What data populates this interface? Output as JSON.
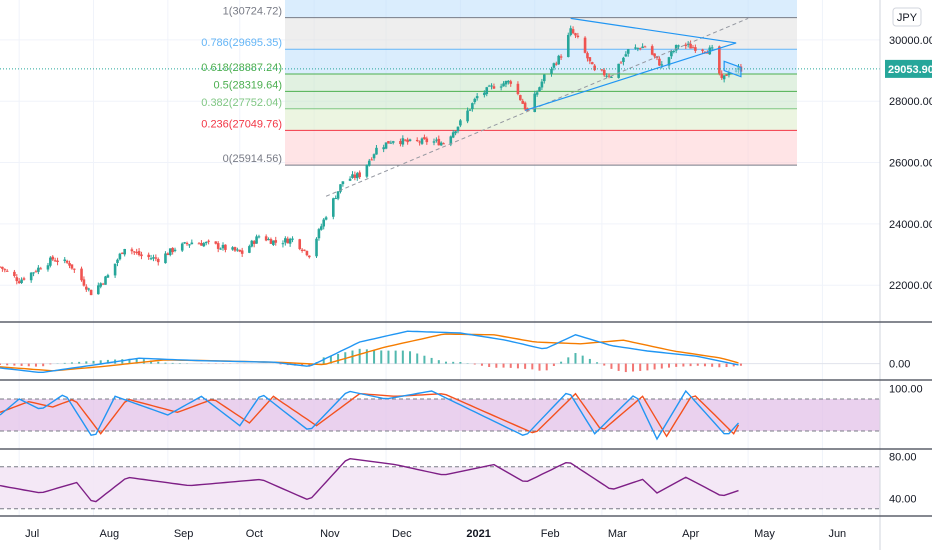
{
  "currency": "JPY",
  "last_price": "29053.90",
  "colors": {
    "up": "#26a69a",
    "down": "#ef5350",
    "macd": "#2196f3",
    "signal": "#f57c00",
    "stoch_k": "#2196f3",
    "stoch_d": "#f4511e",
    "rsi": "#7e1f86",
    "trend": "#2196f3",
    "osc_band": "#e1bee7",
    "rsi_band": "#f3e5f5",
    "last_price_bg": "#26a69a"
  },
  "chart_data": [
    {
      "type": "candlestick",
      "title": "",
      "x_ticks": [
        "Jul",
        "Aug",
        "Sep",
        "Oct",
        "Nov",
        "Dec",
        "2021",
        "Feb",
        "Mar",
        "Apr",
        "May",
        "Jun"
      ],
      "x_range": [
        "2020-06-23",
        "2021-06-25"
      ],
      "y_ticks": [
        "30000.00",
        "28000.00",
        "26000.00",
        "24000.00",
        "22000.00"
      ],
      "y_range": [
        20800,
        31300
      ],
      "fibonacci": [
        {
          "level": "1",
          "price": "30724.72",
          "label": "1(30724.72)",
          "color": "#787b86"
        },
        {
          "level": "0.786",
          "price": "29695.35",
          "label": "0.786(29695.35)",
          "color": "#64b5f6"
        },
        {
          "level": "0.618",
          "price": "28887.24",
          "label": "0.618(28887.24)",
          "color": "#4caf50"
        },
        {
          "level": "0.5",
          "price": "28319.64",
          "label": "0.5(28319.64)",
          "color": "#4caf50"
        },
        {
          "level": "0.382",
          "price": "27752.04",
          "label": "0.382(27752.04)",
          "color": "#81c784"
        },
        {
          "level": "0.236",
          "price": "27049.76",
          "label": "0.236(27049.76)",
          "color": "#f23645"
        },
        {
          "level": "0",
          "price": "25914.56",
          "label": "0(25914.56)",
          "color": "#787b86"
        }
      ],
      "price_path": [
        [
          "2020-06-23",
          22600
        ],
        [
          "2020-07-01",
          22150
        ],
        [
          "2020-07-08",
          22500
        ],
        [
          "2020-07-15",
          22850
        ],
        [
          "2020-07-22",
          22700
        ],
        [
          "2020-07-31",
          21750
        ],
        [
          "2020-08-07",
          22300
        ],
        [
          "2020-08-14",
          23250
        ],
        [
          "2020-08-21",
          22950
        ],
        [
          "2020-08-28",
          22850
        ],
        [
          "2020-09-04",
          23200
        ],
        [
          "2020-09-11",
          23400
        ],
        [
          "2020-09-18",
          23350
        ],
        [
          "2020-09-25",
          23200
        ],
        [
          "2020-10-02",
          23050
        ],
        [
          "2020-10-09",
          23600
        ],
        [
          "2020-10-16",
          23400
        ],
        [
          "2020-10-23",
          23500
        ],
        [
          "2020-10-30",
          23000
        ],
        [
          "2020-11-06",
          24300
        ],
        [
          "2020-11-13",
          25400
        ],
        [
          "2020-11-20",
          25600
        ],
        [
          "2020-11-27",
          26450
        ],
        [
          "2020-12-04",
          26750
        ],
        [
          "2020-12-11",
          26650
        ],
        [
          "2020-12-18",
          26700
        ],
        [
          "2020-12-25",
          26650
        ],
        [
          "2021-01-01",
          27300
        ],
        [
          "2021-01-08",
          28150
        ],
        [
          "2021-01-15",
          28500
        ],
        [
          "2021-01-22",
          28650
        ],
        [
          "2021-01-29",
          27650
        ],
        [
          "2021-02-05",
          28800
        ],
        [
          "2021-02-12",
          29500
        ],
        [
          "2021-02-16",
          30300
        ],
        [
          "2021-02-19",
          30000
        ],
        [
          "2021-02-26",
          28950
        ],
        [
          "2021-03-05",
          28850
        ],
        [
          "2021-03-12",
          29650
        ],
        [
          "2021-03-19",
          29800
        ],
        [
          "2021-03-26",
          29150
        ],
        [
          "2021-04-02",
          29850
        ],
        [
          "2021-04-09",
          29750
        ],
        [
          "2021-04-16",
          29650
        ],
        [
          "2021-04-20",
          28650
        ],
        [
          "2021-04-23",
          29000
        ],
        [
          "2021-04-28",
          29053.9
        ]
      ],
      "triangle_upper": [
        [
          "2021-02-16",
          30700
        ],
        [
          "2021-04-26",
          29900
        ]
      ],
      "triangle_lower": [
        [
          "2021-01-28",
          27700
        ],
        [
          "2021-04-26",
          29900
        ]
      ],
      "dashed_trend": [
        [
          "2020-11-06",
          24900
        ],
        [
          "2021-05-01",
          30700
        ]
      ],
      "flag_channel": [
        [
          "2021-04-21",
          29150
        ],
        [
          "2021-04-28",
          28950
        ]
      ]
    },
    {
      "type": "macd",
      "y_ticks": [
        "0.00"
      ],
      "series": [
        {
          "key": "macd",
          "values": [
            [
              -120,
              "2020-06-23"
            ],
            [
              -250,
              "2020-07-10"
            ],
            [
              -50,
              "2020-07-31"
            ],
            [
              150,
              "2020-08-20"
            ],
            [
              80,
              "2020-09-15"
            ],
            [
              40,
              "2020-10-15"
            ],
            [
              -80,
              "2020-10-30"
            ],
            [
              600,
              "2020-11-20"
            ],
            [
              900,
              "2020-12-10"
            ],
            [
              850,
              "2021-01-01"
            ],
            [
              650,
              "2021-01-20"
            ],
            [
              400,
              "2021-02-05"
            ],
            [
              800,
              "2021-02-18"
            ],
            [
              500,
              "2021-03-05"
            ],
            [
              350,
              "2021-03-20"
            ],
            [
              200,
              "2021-04-10"
            ],
            [
              -50,
              "2021-04-28"
            ]
          ]
        },
        {
          "key": "signal",
          "values": [
            [
              -90,
              "2020-06-23"
            ],
            [
              -200,
              "2020-07-15"
            ],
            [
              -80,
              "2020-08-05"
            ],
            [
              100,
              "2020-08-30"
            ],
            [
              80,
              "2020-09-20"
            ],
            [
              30,
              "2020-10-20"
            ],
            [
              -30,
              "2020-11-05"
            ],
            [
              450,
              "2020-11-30"
            ],
            [
              820,
              "2020-12-25"
            ],
            [
              800,
              "2021-01-15"
            ],
            [
              600,
              "2021-02-01"
            ],
            [
              550,
              "2021-02-20"
            ],
            [
              650,
              "2021-03-10"
            ],
            [
              350,
              "2021-03-31"
            ],
            [
              150,
              "2021-04-20"
            ],
            [
              0,
              "2021-04-28"
            ]
          ]
        }
      ]
    },
    {
      "type": "stochastic",
      "y_ticks": [
        "100.00"
      ],
      "levels": [
        80,
        20
      ],
      "series": [
        {
          "key": "k",
          "values": [
            [
              50,
              "2020-06-23"
            ],
            [
              80,
              "2020-07-01"
            ],
            [
              60,
              "2020-07-10"
            ],
            [
              90,
              "2020-07-20"
            ],
            [
              5,
              "2020-08-01"
            ],
            [
              85,
              "2020-08-10"
            ],
            [
              50,
              "2020-09-01"
            ],
            [
              85,
              "2020-09-15"
            ],
            [
              30,
              "2020-10-01"
            ],
            [
              90,
              "2020-10-10"
            ],
            [
              20,
              "2020-10-30"
            ],
            [
              95,
              "2020-11-15"
            ],
            [
              80,
              "2020-12-01"
            ],
            [
              95,
              "2020-12-20"
            ],
            [
              10,
              "2021-01-28"
            ],
            [
              95,
              "2021-02-15"
            ],
            [
              15,
              "2021-02-26"
            ],
            [
              90,
              "2021-03-15"
            ],
            [
              5,
              "2021-03-24"
            ],
            [
              95,
              "2021-04-05"
            ],
            [
              10,
              "2021-04-22"
            ],
            [
              40,
              "2021-04-28"
            ]
          ]
        },
        {
          "key": "d",
          "values": [
            [
              55,
              "2020-06-23"
            ],
            [
              75,
              "2020-07-05"
            ],
            [
              65,
              "2020-07-15"
            ],
            [
              80,
              "2020-07-24"
            ],
            [
              15,
              "2020-08-04"
            ],
            [
              80,
              "2020-08-15"
            ],
            [
              55,
              "2020-09-05"
            ],
            [
              80,
              "2020-09-20"
            ],
            [
              35,
              "2020-10-05"
            ],
            [
              85,
              "2020-10-15"
            ],
            [
              30,
              "2020-11-02"
            ],
            [
              90,
              "2020-11-20"
            ],
            [
              85,
              "2020-12-05"
            ],
            [
              90,
              "2020-12-25"
            ],
            [
              15,
              "2021-02-01"
            ],
            [
              90,
              "2021-02-18"
            ],
            [
              20,
              "2021-03-01"
            ],
            [
              85,
              "2021-03-18"
            ],
            [
              10,
              "2021-03-28"
            ],
            [
              90,
              "2021-04-08"
            ],
            [
              15,
              "2021-04-25"
            ],
            [
              40,
              "2021-04-28"
            ]
          ]
        }
      ]
    },
    {
      "type": "rsi",
      "y_ticks": [
        "80.00",
        "40.00"
      ],
      "levels": [
        70,
        30
      ],
      "series": [
        {
          "key": "rsi",
          "values": [
            [
              52,
              "2020-06-23"
            ],
            [
              45,
              "2020-07-10"
            ],
            [
              55,
              "2020-07-25"
            ],
            [
              35,
              "2020-08-01"
            ],
            [
              60,
              "2020-08-15"
            ],
            [
              52,
              "2020-09-10"
            ],
            [
              58,
              "2020-10-10"
            ],
            [
              38,
              "2020-10-30"
            ],
            [
              78,
              "2020-11-15"
            ],
            [
              72,
              "2020-12-05"
            ],
            [
              62,
              "2020-12-25"
            ],
            [
              72,
              "2021-01-15"
            ],
            [
              55,
              "2021-01-28"
            ],
            [
              75,
              "2021-02-15"
            ],
            [
              48,
              "2021-03-05"
            ],
            [
              58,
              "2021-03-18"
            ],
            [
              45,
              "2021-03-24"
            ],
            [
              60,
              "2021-04-05"
            ],
            [
              42,
              "2021-04-20"
            ],
            [
              48,
              "2021-04-28"
            ]
          ]
        }
      ]
    }
  ]
}
